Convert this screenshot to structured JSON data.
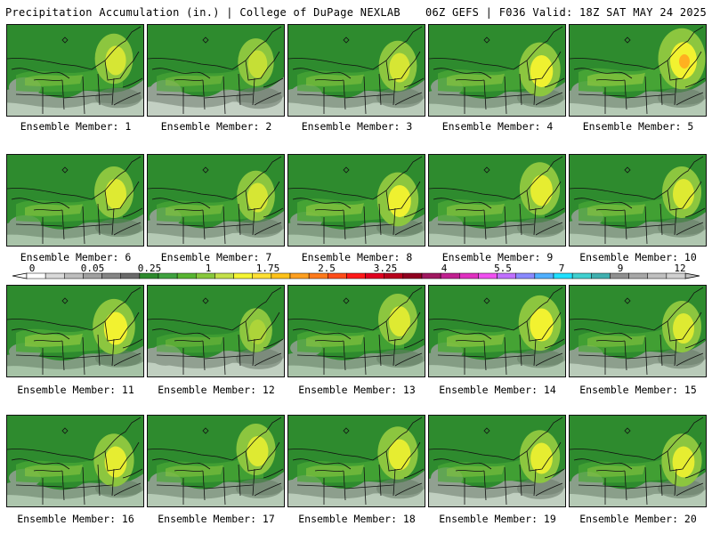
{
  "header": {
    "title": "Precipitation Accumulation (in.) | College of DuPage NEXLAB",
    "run_info": "06Z GEFS | F036 Valid: 18Z SAT MAY 24 2025"
  },
  "members": [
    {
      "label": "Ensemble Member: 1",
      "wetness": 0.35,
      "dry": 0.55,
      "ne_max": 0.9
    },
    {
      "label": "Ensemble Member: 2",
      "wetness": 0.25,
      "dry": 0.7,
      "ne_max": 0.7
    },
    {
      "label": "Ensemble Member: 3",
      "wetness": 0.4,
      "dry": 0.55,
      "ne_max": 0.9
    },
    {
      "label": "Ensemble Member: 4",
      "wetness": 0.55,
      "dry": 0.45,
      "ne_max": 1.2
    },
    {
      "label": "Ensemble Member: 5",
      "wetness": 0.7,
      "dry": 0.5,
      "ne_max": 1.75
    },
    {
      "label": "Ensemble Member: 6",
      "wetness": 0.45,
      "dry": 0.35,
      "ne_max": 1.0
    },
    {
      "label": "Ensemble Member: 7",
      "wetness": 0.4,
      "dry": 0.5,
      "ne_max": 0.9
    },
    {
      "label": "Ensemble Member: 8",
      "wetness": 0.65,
      "dry": 0.35,
      "ne_max": 1.2
    },
    {
      "label": "Ensemble Member: 9",
      "wetness": 0.55,
      "dry": 0.45,
      "ne_max": 1.1
    },
    {
      "label": "Ensemble Member: 10",
      "wetness": 0.45,
      "dry": 0.45,
      "ne_max": 1.0
    },
    {
      "label": "Ensemble Member: 11",
      "wetness": 0.7,
      "dry": 0.3,
      "ne_max": 1.3
    },
    {
      "label": "Ensemble Member: 12",
      "wetness": 0.15,
      "dry": 0.65,
      "ne_max": 0.4
    },
    {
      "label": "Ensemble Member: 13",
      "wetness": 0.5,
      "dry": 0.35,
      "ne_max": 1.0
    },
    {
      "label": "Ensemble Member: 14",
      "wetness": 0.65,
      "dry": 0.4,
      "ne_max": 1.3
    },
    {
      "label": "Ensemble Member: 15",
      "wetness": 0.4,
      "dry": 0.55,
      "ne_max": 1.0
    },
    {
      "label": "Ensemble Member: 16",
      "wetness": 0.5,
      "dry": 0.4,
      "ne_max": 1.1
    },
    {
      "label": "Ensemble Member: 17",
      "wetness": 0.4,
      "dry": 0.5,
      "ne_max": 1.0
    },
    {
      "label": "Ensemble Member: 18",
      "wetness": 0.45,
      "dry": 0.55,
      "ne_max": 1.1
    },
    {
      "label": "Ensemble Member: 19",
      "wetness": 0.35,
      "dry": 0.65,
      "ne_max": 1.1
    },
    {
      "label": "Ensemble Member: 20",
      "wetness": 0.4,
      "dry": 0.5,
      "ne_max": 1.1
    }
  ],
  "legend": {
    "labels": [
      "0",
      "0.05",
      "0.25",
      "1",
      "1.75",
      "2.5",
      "3.25",
      "4",
      "5.5",
      "7",
      "9",
      "12"
    ],
    "colors": [
      "#ffffff",
      "#d9d9d9",
      "#bdbdbd",
      "#a0a0a0",
      "#858585",
      "#6a6a6a",
      "#2d8a2d",
      "#3fa23f",
      "#58b532",
      "#88c83c",
      "#c4e04a",
      "#f5f533",
      "#ffe033",
      "#ffc21a",
      "#ffa020",
      "#ff7a1a",
      "#ff4d1a",
      "#ff1a1a",
      "#e00020",
      "#b8001c",
      "#900020",
      "#a01860",
      "#c02090",
      "#e030c0",
      "#f050f0",
      "#c070ff",
      "#8a8aff",
      "#50b0ff",
      "#20e0ff",
      "#40d0d0",
      "#40b0b0",
      "#909090",
      "#a8a8a8",
      "#c0c0c0",
      "#d0d0d0"
    ]
  },
  "colors": {
    "dry_light": "#dcdcdc",
    "dry_mid": "#a5a5a5",
    "dry_dark": "#7a7a7a",
    "base_green": "#2e8b2e",
    "mid_green": "#4aa836",
    "light_green": "#8cc63f",
    "yellow": "#f2f230",
    "orange": "#ffb020",
    "border": "#111111"
  }
}
